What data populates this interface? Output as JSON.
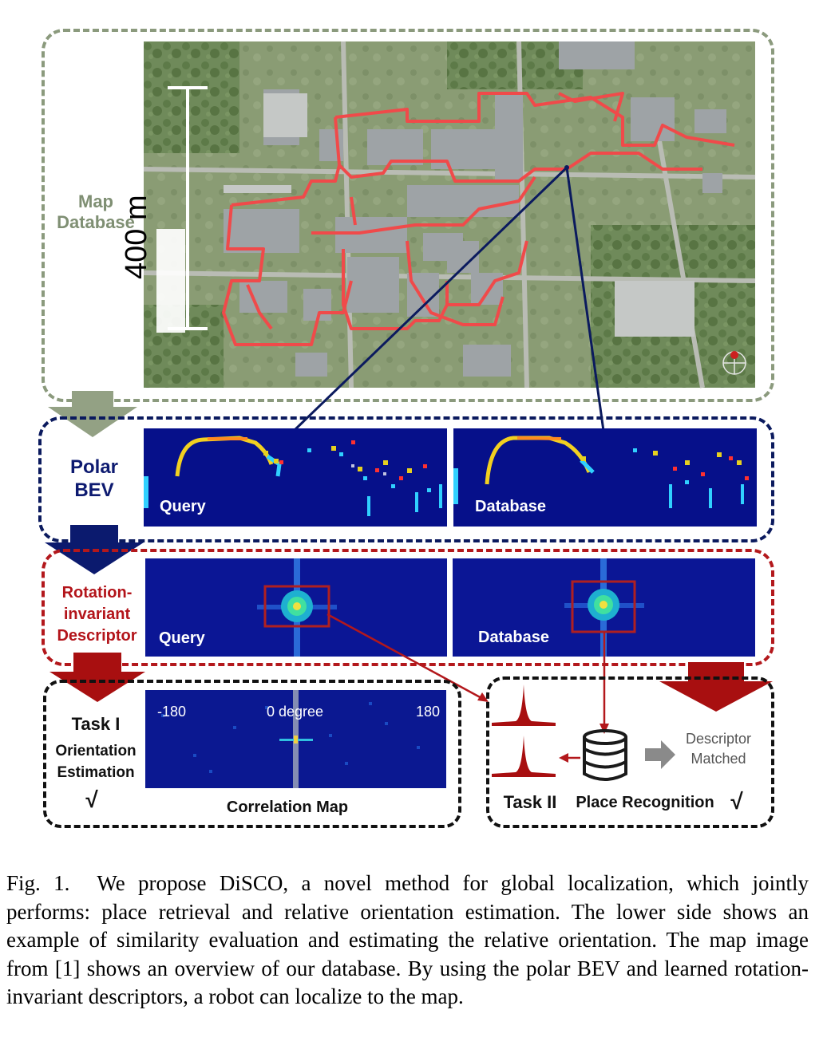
{
  "figure": {
    "map_database_label": "Map Database",
    "scale_label": "400 m",
    "polar_bev_label": "Polar BEV",
    "query_label": "Query",
    "database_label": "Database",
    "descriptor_label": "Rotation-invariant Descriptor",
    "task1_title": "Task I",
    "task1_subtitle": "Orientation Estimation",
    "check_mark": "√",
    "corr_left_tick": "-180",
    "corr_center_tick": "0 degree",
    "corr_right_tick": "180",
    "correlation_map_label": "Correlation Map",
    "task2_title": "Task II",
    "place_recognition_label": "Place Recognition",
    "descriptor_matched_label": "Descriptor Matched",
    "colors": {
      "green_dash": "#8b9a7d",
      "navy_dash": "#0b1a5e",
      "red_dash": "#b3181c",
      "black_dash": "#111111",
      "dark_red_arrow": "#a80f10",
      "map_label_color": "#7f8f73",
      "polar_label_color": "#0d1a70",
      "descriptor_label_color": "#b3141a"
    }
  },
  "caption": {
    "fig_number": "Fig. 1.",
    "text": "We propose DiSCO, a novel method for global localization, which jointly performs: place retrieval and relative orientation estimation. The lower side shows an example of similarity evaluation and estimating the relative orientation. The map image from [1] shows an overview of our database. By using the polar BEV and learned rotation-invariant descriptors, a robot can localize to the map."
  }
}
